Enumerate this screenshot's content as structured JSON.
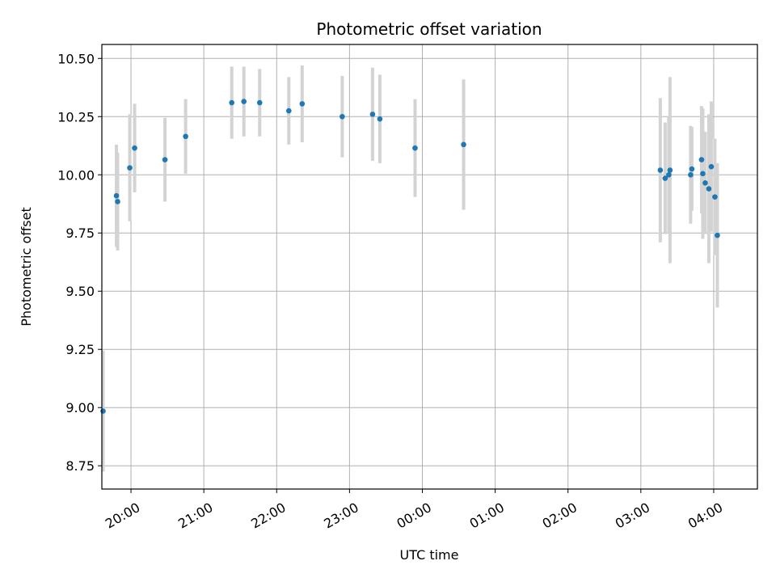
{
  "chart_data": {
    "type": "scatter",
    "title": "Photometric offset variation",
    "xlabel": "UTC time",
    "ylabel": "Photometric offset",
    "x_axis_type": "time",
    "x_range": [
      "19:36",
      "04:36"
    ],
    "ylim": [
      8.65,
      10.56
    ],
    "x_ticks": [
      "20:00",
      "21:00",
      "22:00",
      "23:00",
      "00:00",
      "01:00",
      "02:00",
      "03:00",
      "04:00"
    ],
    "y_ticks": [
      8.75,
      9.0,
      9.25,
      9.5,
      9.75,
      10.0,
      10.25,
      10.5
    ],
    "y_tick_labels": [
      "8.75",
      "9.00",
      "9.25",
      "9.50",
      "9.75",
      "10.00",
      "10.25",
      "10.50"
    ],
    "grid": true,
    "point_color": "#1f77b4",
    "errorbar_color": "#d3d3d3",
    "points": [
      {
        "t": "19:37",
        "y": 8.985,
        "err": 0.26
      },
      {
        "t": "19:48",
        "y": 9.91,
        "err": 0.22
      },
      {
        "t": "19:49",
        "y": 9.885,
        "err": 0.21
      },
      {
        "t": "19:59",
        "y": 10.03,
        "err": 0.23
      },
      {
        "t": "20:03",
        "y": 10.115,
        "err": 0.19
      },
      {
        "t": "20:28",
        "y": 10.065,
        "err": 0.18
      },
      {
        "t": "20:45",
        "y": 10.165,
        "err": 0.16
      },
      {
        "t": "21:23",
        "y": 10.31,
        "err": 0.155
      },
      {
        "t": "21:33",
        "y": 10.315,
        "err": 0.15
      },
      {
        "t": "21:46",
        "y": 10.31,
        "err": 0.145
      },
      {
        "t": "22:10",
        "y": 10.275,
        "err": 0.145
      },
      {
        "t": "22:21",
        "y": 10.305,
        "err": 0.165
      },
      {
        "t": "22:54",
        "y": 10.25,
        "err": 0.175
      },
      {
        "t": "23:19",
        "y": 10.26,
        "err": 0.2
      },
      {
        "t": "23:25",
        "y": 10.24,
        "err": 0.19
      },
      {
        "t": "23:54",
        "y": 10.115,
        "err": 0.21
      },
      {
        "t": "00:34",
        "y": 10.13,
        "err": 0.28
      },
      {
        "t": "03:16",
        "y": 10.02,
        "err": 0.31
      },
      {
        "t": "03:20",
        "y": 9.985,
        "err": 0.24
      },
      {
        "t": "03:23",
        "y": 10.0,
        "err": 0.25
      },
      {
        "t": "03:24",
        "y": 10.02,
        "err": 0.4
      },
      {
        "t": "03:41",
        "y": 10.0,
        "err": 0.21
      },
      {
        "t": "03:42",
        "y": 10.025,
        "err": 0.18
      },
      {
        "t": "03:50",
        "y": 10.065,
        "err": 0.23
      },
      {
        "t": "03:51",
        "y": 10.005,
        "err": 0.28
      },
      {
        "t": "03:53",
        "y": 9.965,
        "err": 0.22
      },
      {
        "t": "03:56",
        "y": 9.94,
        "err": 0.32
      },
      {
        "t": "03:58",
        "y": 10.035,
        "err": 0.28
      },
      {
        "t": "04:01",
        "y": 9.905,
        "err": 0.25
      },
      {
        "t": "04:03",
        "y": 9.74,
        "err": 0.31
      }
    ]
  }
}
